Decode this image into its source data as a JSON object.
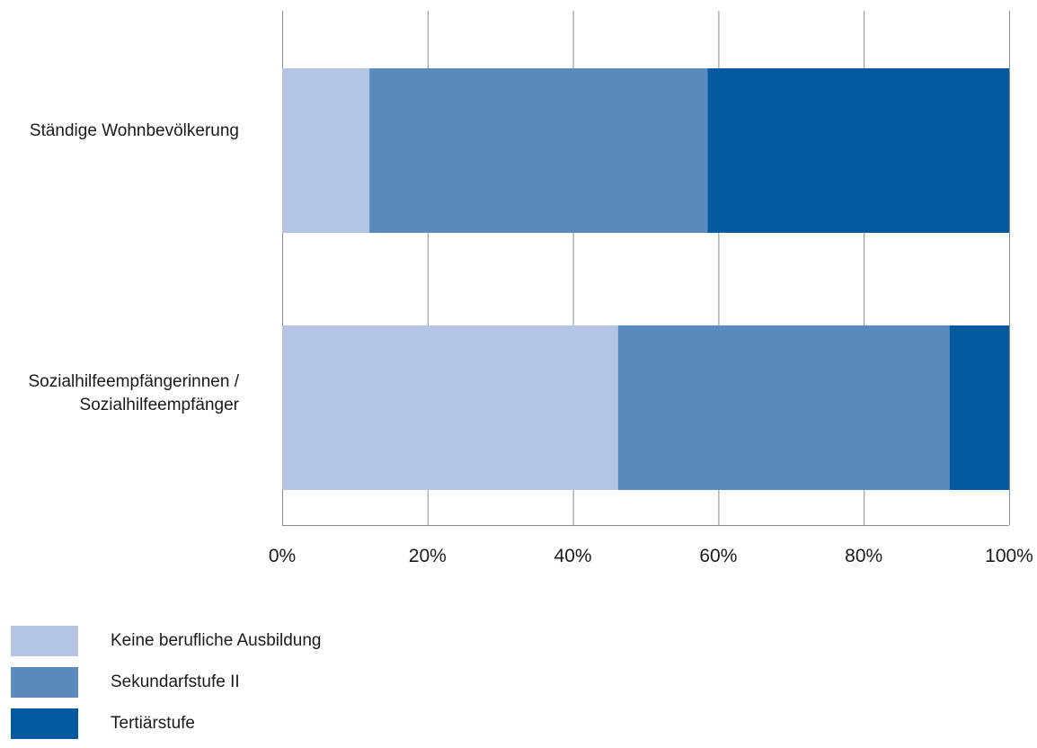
{
  "chart_data": {
    "type": "bar",
    "orientation": "horizontal",
    "stacked": "percent",
    "categories": [
      "Ständige Wohnbevölkerung",
      "Sozialhilfeempfängerinnen / Sozialhilfeempfänger"
    ],
    "category_lines": [
      [
        "Ständige Wohnbevölkerung"
      ],
      [
        "Sozialhilfeempfängerinnen /",
        "Sozialhilfeempfänger"
      ]
    ],
    "series": [
      {
        "name": "Keine berufliche Ausbildung",
        "values": [
          12,
          46.2
        ],
        "color": "#b4c4e3"
      },
      {
        "name": "Sekundarfstufe II",
        "values": [
          46.5,
          45.6
        ],
        "color": "#5a8bbe"
      },
      {
        "name": "Tertiärstufe",
        "values": [
          41.5,
          8.2
        ],
        "color": "#035a9e"
      }
    ],
    "xlim": [
      0,
      100
    ],
    "xticks": [
      "0%",
      "20%",
      "40%",
      "60%",
      "80%",
      "100%"
    ],
    "grid": true,
    "legend_position": "bottom-left"
  }
}
